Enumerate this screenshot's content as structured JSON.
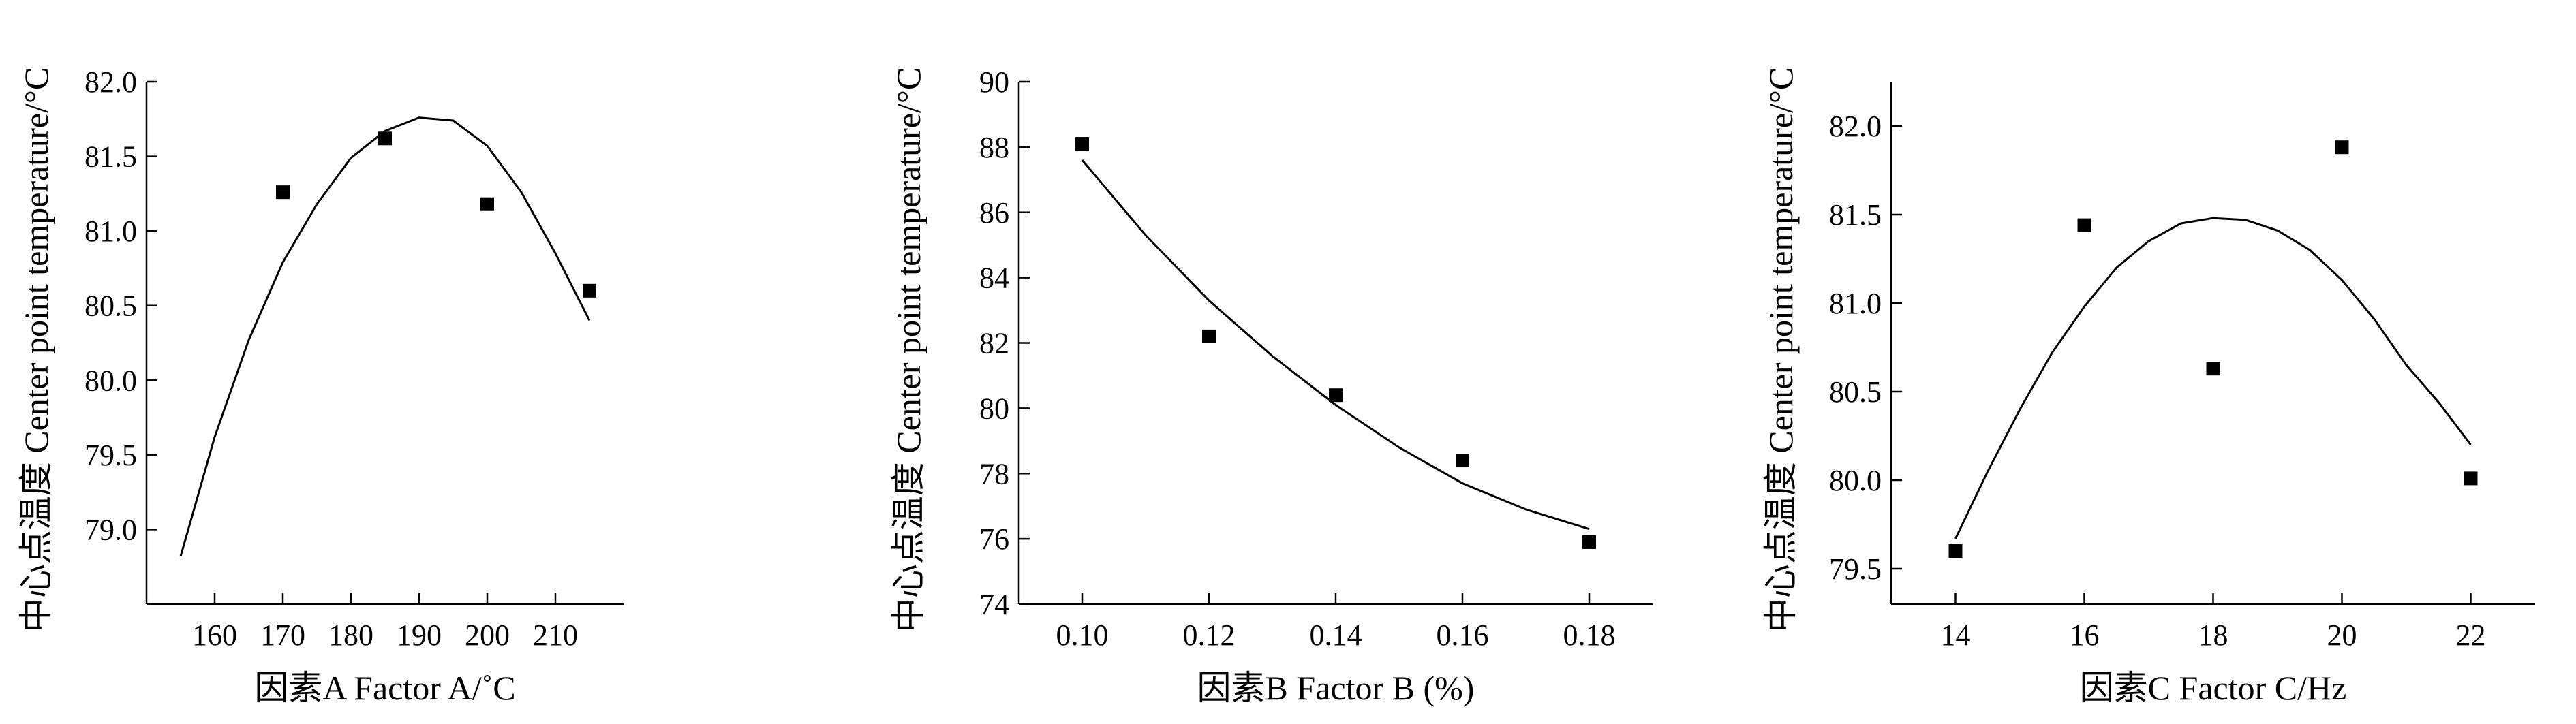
{
  "chart_data": [
    {
      "type": "scatter",
      "title": "",
      "xlabel": "因素A  Factor A/˚C",
      "ylabel": "中心点温度  Center point temperature/°C",
      "xlim": [
        150,
        220
      ],
      "ylim": [
        78.5,
        82.0
      ],
      "xticks": [
        "160",
        "170",
        "180",
        "190",
        "200",
        "210"
      ],
      "yticks": [
        "79.0",
        "79.5",
        "80.0",
        "80.5",
        "81.0",
        "81.5",
        "82.0"
      ],
      "points": {
        "x": [
          170,
          185,
          200,
          215
        ],
        "y": [
          81.26,
          81.62,
          81.18,
          80.6
        ]
      },
      "fit_curve": {
        "x": [
          155,
          160,
          165,
          170,
          175,
          180,
          185,
          190,
          195,
          200,
          205,
          210,
          215
        ],
        "y": [
          78.82,
          79.62,
          80.27,
          80.79,
          81.18,
          81.49,
          81.67,
          81.76,
          81.74,
          81.57,
          81.26,
          80.85,
          80.4
        ]
      }
    },
    {
      "type": "scatter",
      "title": "",
      "xlabel": "因素B  Factor B (%)",
      "ylabel": "中心点温度  Center point temperature/°C",
      "xlim": [
        0.09,
        0.19
      ],
      "ylim": [
        74,
        90
      ],
      "xticks": [
        "0.10",
        "0.12",
        "0.14",
        "0.16",
        "0.18"
      ],
      "yticks": [
        "74",
        "76",
        "78",
        "80",
        "82",
        "84",
        "86",
        "88",
        "90"
      ],
      "points": {
        "x": [
          0.1,
          0.12,
          0.14,
          0.16,
          0.18
        ],
        "y": [
          88.1,
          82.2,
          80.4,
          78.4,
          75.9
        ]
      },
      "fit_curve": {
        "x": [
          0.1,
          0.11,
          0.12,
          0.13,
          0.14,
          0.15,
          0.16,
          0.17,
          0.18
        ],
        "y": [
          87.6,
          85.3,
          83.3,
          81.6,
          80.1,
          78.8,
          77.7,
          76.9,
          76.3
        ]
      }
    },
    {
      "type": "scatter",
      "title": "",
      "xlabel": "因素C  Factor C/Hz",
      "ylabel": "中心点温度  Center point temperature/°C",
      "xlim": [
        13,
        23
      ],
      "ylim": [
        79.3,
        82.25
      ],
      "xticks": [
        "14",
        "16",
        "18",
        "20",
        "22"
      ],
      "yticks": [
        "79.5",
        "80.0",
        "80.5",
        "81.0",
        "81.5",
        "82.0"
      ],
      "points": {
        "x": [
          14,
          16,
          18,
          20,
          22
        ],
        "y": [
          79.6,
          81.44,
          80.63,
          81.88,
          80.01
        ]
      },
      "fit_curve": {
        "x": [
          14,
          14.5,
          15,
          15.5,
          16,
          16.5,
          17,
          17.5,
          18,
          18.5,
          19,
          19.5,
          20,
          20.5,
          21,
          21.5,
          22
        ],
        "y": [
          79.67,
          80.05,
          80.4,
          80.72,
          80.98,
          81.2,
          81.35,
          81.45,
          81.48,
          81.47,
          81.41,
          81.3,
          81.13,
          80.91,
          80.65,
          80.44,
          80.2
        ]
      }
    }
  ]
}
